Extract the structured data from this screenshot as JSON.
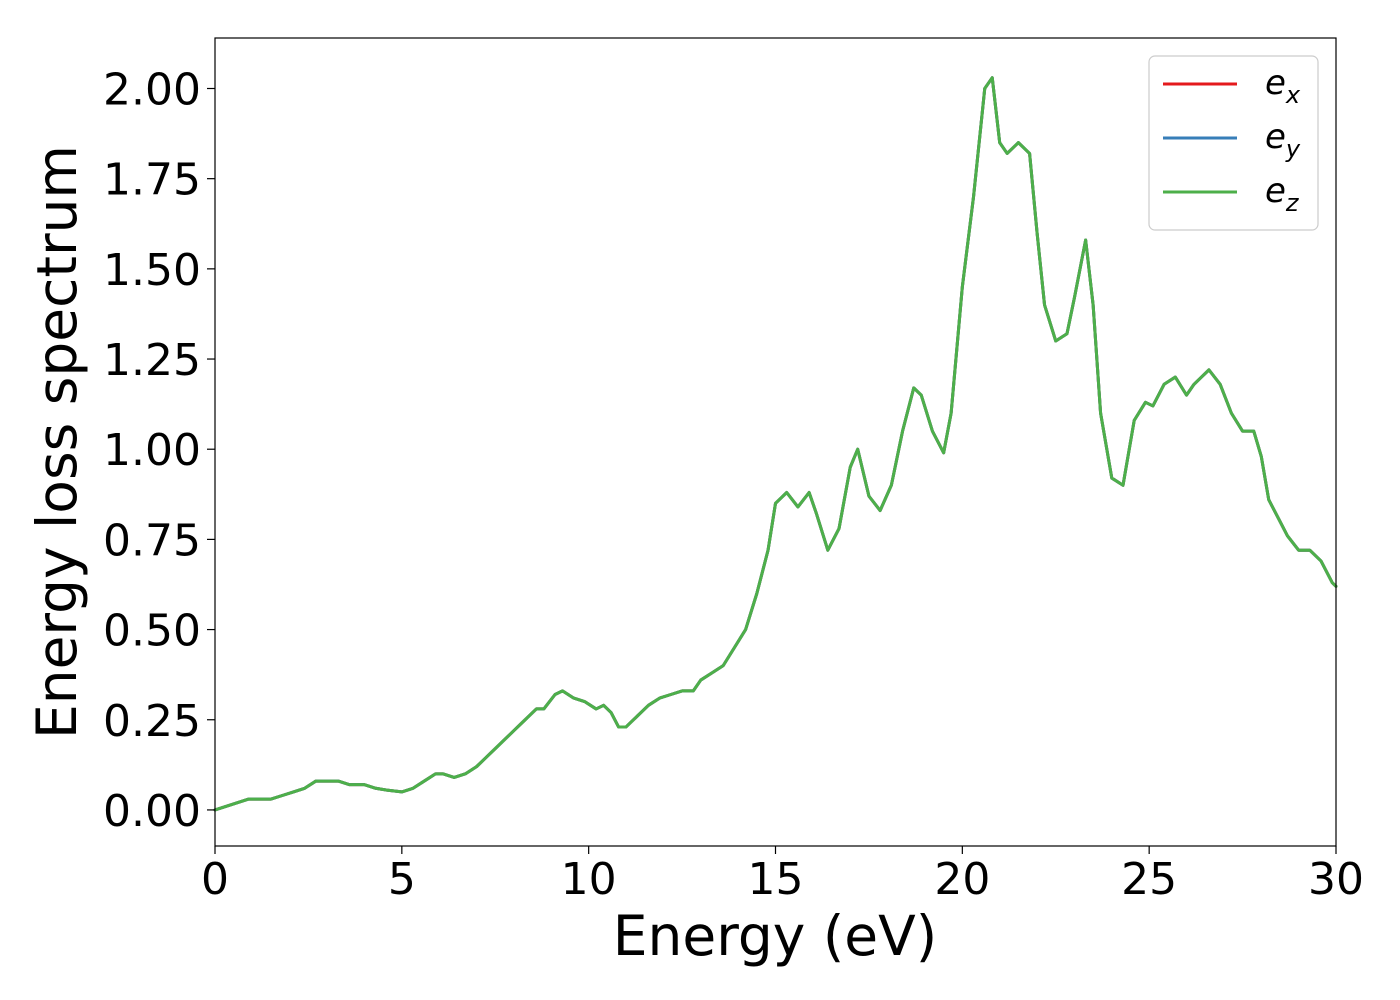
{
  "chart_data": {
    "type": "line",
    "title": "",
    "xlabel": "Energy (eV)",
    "ylabel": "Energy loss spectrum",
    "xlim": [
      0,
      30
    ],
    "ylim": [
      -0.1,
      2.14
    ],
    "x_ticks": [
      0,
      5,
      10,
      15,
      20,
      25,
      30
    ],
    "x_tick_labels": [
      "0",
      "5",
      "10",
      "15",
      "20",
      "25",
      "30"
    ],
    "y_ticks": [
      0.0,
      0.25,
      0.5,
      0.75,
      1.0,
      1.25,
      1.5,
      1.75,
      2.0
    ],
    "y_tick_labels": [
      "0.00",
      "0.25",
      "0.50",
      "0.75",
      "1.00",
      "1.25",
      "1.50",
      "1.75",
      "2.00"
    ],
    "grid": false,
    "legend_position": "top-right",
    "x": [
      0.0,
      0.3,
      0.6,
      0.9,
      1.2,
      1.5,
      1.8,
      2.1,
      2.4,
      2.7,
      3.0,
      3.3,
      3.6,
      4.0,
      4.3,
      4.6,
      5.0,
      5.3,
      5.6,
      5.9,
      6.1,
      6.4,
      6.7,
      7.0,
      7.3,
      7.6,
      8.0,
      8.3,
      8.6,
      8.8,
      9.1,
      9.3,
      9.6,
      9.9,
      10.2,
      10.4,
      10.6,
      10.8,
      11.0,
      11.3,
      11.6,
      11.9,
      12.2,
      12.5,
      12.8,
      13.0,
      13.3,
      13.6,
      13.9,
      14.2,
      14.5,
      14.8,
      15.0,
      15.3,
      15.6,
      15.9,
      16.1,
      16.4,
      16.7,
      17.0,
      17.2,
      17.5,
      17.8,
      18.1,
      18.4,
      18.7,
      18.9,
      19.2,
      19.5,
      19.7,
      20.0,
      20.3,
      20.6,
      20.8,
      21.0,
      21.2,
      21.5,
      21.8,
      22.0,
      22.2,
      22.5,
      22.8,
      23.0,
      23.3,
      23.5,
      23.7,
      24.0,
      24.3,
      24.6,
      24.9,
      25.1,
      25.4,
      25.7,
      26.0,
      26.2,
      26.4,
      26.6,
      26.9,
      27.2,
      27.5,
      27.8,
      28.0,
      28.2,
      28.5,
      28.7,
      29.0,
      29.3,
      29.6,
      29.9,
      30.0
    ],
    "series": [
      {
        "name": "e",
        "subscript": "x",
        "color": "#e41a1c",
        "values": [
          0.0,
          0.01,
          0.02,
          0.03,
          0.03,
          0.03,
          0.04,
          0.05,
          0.06,
          0.08,
          0.08,
          0.08,
          0.07,
          0.07,
          0.06,
          0.055,
          0.05,
          0.06,
          0.08,
          0.1,
          0.1,
          0.09,
          0.1,
          0.12,
          0.15,
          0.18,
          0.22,
          0.25,
          0.28,
          0.28,
          0.32,
          0.33,
          0.31,
          0.3,
          0.28,
          0.29,
          0.27,
          0.23,
          0.23,
          0.26,
          0.29,
          0.31,
          0.32,
          0.33,
          0.33,
          0.36,
          0.38,
          0.4,
          0.45,
          0.5,
          0.6,
          0.72,
          0.85,
          0.88,
          0.84,
          0.88,
          0.82,
          0.72,
          0.78,
          0.95,
          1.0,
          0.87,
          0.83,
          0.9,
          1.05,
          1.17,
          1.15,
          1.05,
          0.99,
          1.1,
          1.45,
          1.7,
          2.0,
          2.03,
          1.85,
          1.82,
          1.85,
          1.82,
          1.6,
          1.4,
          1.3,
          1.32,
          1.42,
          1.58,
          1.4,
          1.1,
          0.92,
          0.9,
          1.08,
          1.13,
          1.12,
          1.18,
          1.2,
          1.15,
          1.18,
          1.2,
          1.22,
          1.18,
          1.1,
          1.05,
          1.05,
          0.98,
          0.86,
          0.8,
          0.76,
          0.72,
          0.72,
          0.69,
          0.63,
          0.62
        ]
      },
      {
        "name": "e",
        "subscript": "y",
        "color": "#377eb8",
        "values": [
          0.0,
          0.01,
          0.02,
          0.03,
          0.03,
          0.03,
          0.04,
          0.05,
          0.06,
          0.08,
          0.08,
          0.08,
          0.07,
          0.07,
          0.06,
          0.055,
          0.05,
          0.06,
          0.08,
          0.1,
          0.1,
          0.09,
          0.1,
          0.12,
          0.15,
          0.18,
          0.22,
          0.25,
          0.28,
          0.28,
          0.32,
          0.33,
          0.31,
          0.3,
          0.28,
          0.29,
          0.27,
          0.23,
          0.23,
          0.26,
          0.29,
          0.31,
          0.32,
          0.33,
          0.33,
          0.36,
          0.38,
          0.4,
          0.45,
          0.5,
          0.6,
          0.72,
          0.85,
          0.88,
          0.84,
          0.88,
          0.82,
          0.72,
          0.78,
          0.95,
          1.0,
          0.87,
          0.83,
          0.9,
          1.05,
          1.17,
          1.15,
          1.05,
          0.99,
          1.1,
          1.45,
          1.7,
          2.0,
          2.03,
          1.85,
          1.82,
          1.85,
          1.82,
          1.6,
          1.4,
          1.3,
          1.32,
          1.42,
          1.58,
          1.4,
          1.1,
          0.92,
          0.9,
          1.08,
          1.13,
          1.12,
          1.18,
          1.2,
          1.15,
          1.18,
          1.2,
          1.22,
          1.18,
          1.1,
          1.05,
          1.05,
          0.98,
          0.86,
          0.8,
          0.76,
          0.72,
          0.72,
          0.69,
          0.63,
          0.62
        ]
      },
      {
        "name": "e",
        "subscript": "z",
        "color": "#4daf4a",
        "values": [
          0.0,
          0.01,
          0.02,
          0.03,
          0.03,
          0.03,
          0.04,
          0.05,
          0.06,
          0.08,
          0.08,
          0.08,
          0.07,
          0.07,
          0.06,
          0.055,
          0.05,
          0.06,
          0.08,
          0.1,
          0.1,
          0.09,
          0.1,
          0.12,
          0.15,
          0.18,
          0.22,
          0.25,
          0.28,
          0.28,
          0.32,
          0.33,
          0.31,
          0.3,
          0.28,
          0.29,
          0.27,
          0.23,
          0.23,
          0.26,
          0.29,
          0.31,
          0.32,
          0.33,
          0.33,
          0.36,
          0.38,
          0.4,
          0.45,
          0.5,
          0.6,
          0.72,
          0.85,
          0.88,
          0.84,
          0.88,
          0.82,
          0.72,
          0.78,
          0.95,
          1.0,
          0.87,
          0.83,
          0.9,
          1.05,
          1.17,
          1.15,
          1.05,
          0.99,
          1.1,
          1.45,
          1.7,
          2.0,
          2.03,
          1.85,
          1.82,
          1.85,
          1.82,
          1.6,
          1.4,
          1.3,
          1.32,
          1.42,
          1.58,
          1.4,
          1.1,
          0.92,
          0.9,
          1.08,
          1.13,
          1.12,
          1.18,
          1.2,
          1.15,
          1.18,
          1.2,
          1.22,
          1.18,
          1.1,
          1.05,
          1.05,
          0.98,
          0.86,
          0.8,
          0.76,
          0.72,
          0.72,
          0.69,
          0.63,
          0.62
        ]
      }
    ]
  }
}
